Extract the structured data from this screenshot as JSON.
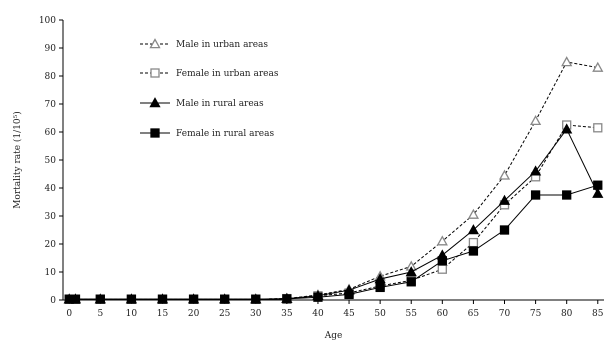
{
  "chart_data": {
    "type": "line",
    "title": "",
    "xlabel": "Age",
    "ylabel": "Mortality rate (1/10⁵)",
    "x": [
      0,
      1,
      5,
      10,
      15,
      20,
      25,
      30,
      35,
      40,
      45,
      50,
      55,
      60,
      65,
      70,
      75,
      80,
      85
    ],
    "x_ticks": [
      0,
      5,
      10,
      15,
      20,
      25,
      30,
      35,
      40,
      45,
      50,
      55,
      60,
      65,
      70,
      75,
      80,
      85
    ],
    "xlim": [
      -1,
      86
    ],
    "ylim": [
      0,
      100
    ],
    "y_ticks": [
      0,
      10,
      20,
      30,
      40,
      50,
      60,
      70,
      80,
      90,
      100
    ],
    "grid": false,
    "legend_position": "top-left",
    "series": [
      {
        "name": "Male in urban areas",
        "line": "dashed",
        "marker": "triangle-open",
        "values": [
          0.3,
          0.3,
          0.3,
          0.3,
          0.3,
          0.3,
          0.3,
          0.3,
          0.5,
          1.8,
          3.8,
          8.5,
          12,
          21,
          30.5,
          44.5,
          64,
          85,
          83
        ]
      },
      {
        "name": "Female in urban areas",
        "line": "dashed",
        "marker": "square-open",
        "values": [
          0.3,
          0.3,
          0.3,
          0.3,
          0.3,
          0.3,
          0.3,
          0.3,
          0.5,
          1.5,
          2.5,
          5,
          7,
          11,
          20.5,
          34,
          44,
          62.5,
          61.5
        ]
      },
      {
        "name": "Male in rural areas",
        "line": "solid",
        "marker": "triangle-filled",
        "values": [
          0.3,
          0.3,
          0.3,
          0.3,
          0.3,
          0.3,
          0.3,
          0.3,
          0.5,
          1.5,
          3.5,
          7.5,
          10,
          16,
          25,
          35.5,
          46,
          61,
          38
        ]
      },
      {
        "name": "Female in rural areas",
        "line": "solid",
        "marker": "square-filled",
        "values": [
          0.3,
          0.3,
          0.3,
          0.3,
          0.3,
          0.3,
          0.3,
          0.3,
          0.4,
          1,
          2,
          4.5,
          6.5,
          14,
          17.5,
          25,
          37.5,
          37.5,
          41
        ]
      }
    ]
  }
}
